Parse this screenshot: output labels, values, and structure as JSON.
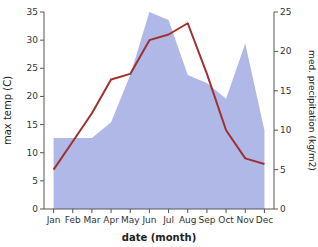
{
  "chart_data": {
    "type": "line",
    "xlabel": "date (month)",
    "ylabel": "max temp (C)",
    "y2label": "med. precipitation (kg/m2)",
    "categories": [
      "Jan",
      "Feb",
      "Mar",
      "Apr",
      "May",
      "Jun",
      "Jul",
      "Aug",
      "Sep",
      "Oct",
      "Nov",
      "Dec"
    ],
    "series": [
      {
        "type": "area",
        "axis": "y2",
        "color": "#b0b8e8",
        "values": [
          9,
          9,
          9,
          11,
          17,
          25,
          24,
          17,
          16,
          14,
          21,
          10
        ]
      },
      {
        "type": "line",
        "color": "#a03030",
        "values": [
          7,
          12,
          17,
          23,
          24,
          30,
          31,
          33,
          24,
          14,
          9,
          8
        ]
      }
    ],
    "ylim": [
      0,
      35
    ],
    "yticks": [
      0,
      5,
      10,
      15,
      20,
      25,
      30,
      35
    ],
    "y2lim": [
      0,
      25
    ],
    "y2ticks": [
      0,
      5,
      10,
      15,
      20,
      25
    ],
    "grid": false
  }
}
